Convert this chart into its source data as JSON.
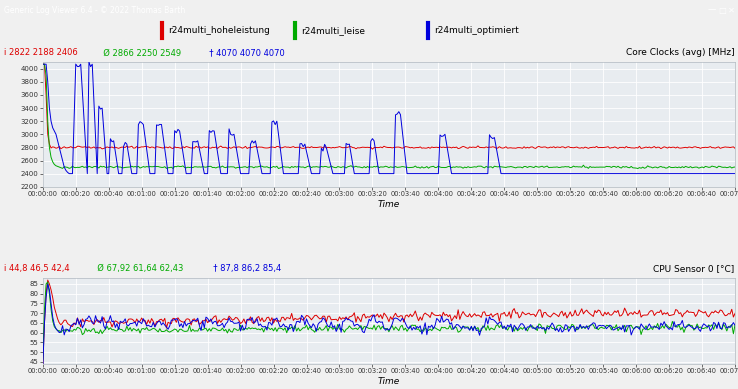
{
  "title_bar": "Generic Log Viewer 6.4 - © 2022 Thomas Barth",
  "legend_labels": [
    "r24multi_hoheleistung",
    "r24multi_leise",
    "r24multi_optimiert"
  ],
  "legend_colors": [
    "#dd0000",
    "#00aa00",
    "#0000dd"
  ],
  "chart1_title": "Core Clocks (avg) [MHz]",
  "chart1_xlabel": "Time",
  "chart1_stats_parts": [
    {
      "text": "i 2822 2188 2406",
      "color": "#dd0000"
    },
    {
      "text": "  Ø 2866 2250 2549",
      "color": "#00aa00"
    },
    {
      "text": "  † 4070 4070 4070",
      "color": "#0000dd"
    }
  ],
  "chart2_title": "CPU Sensor 0 [°C]",
  "chart2_xlabel": "Time",
  "chart2_stats_parts": [
    {
      "text": "i 44,8 46,5 42,4",
      "color": "#dd0000"
    },
    {
      "text": "  Ø 67,92 61,64 62,43",
      "color": "#00aa00"
    },
    {
      "text": "  † 87,8 86,2 85,4",
      "color": "#0000dd"
    }
  ],
  "window_bg": "#f0f0f0",
  "titlebar_bg": "#404040",
  "legend_bg": "#f0f0f0",
  "plot_bg": "#e8ecf0",
  "grid_color": "#ffffff",
  "duration_seconds": 420,
  "clk_ylim": [
    2200,
    4100
  ],
  "clk_yticks": [
    2200,
    2400,
    2600,
    2800,
    3000,
    3200,
    3400,
    3600,
    3800,
    4000
  ],
  "temp_ylim": [
    44,
    88
  ],
  "temp_yticks": [
    45,
    50,
    55,
    60,
    65,
    70,
    75,
    80,
    85
  ]
}
